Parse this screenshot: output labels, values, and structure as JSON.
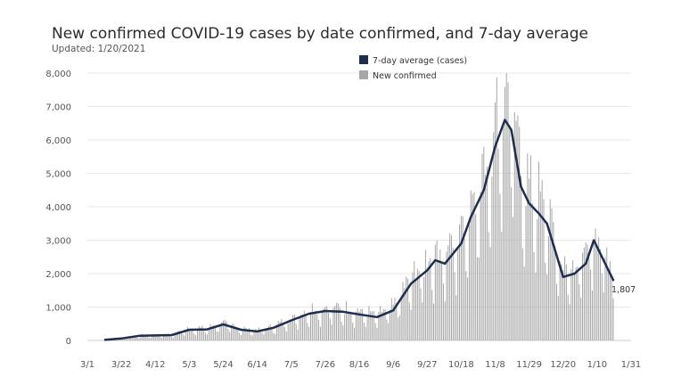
{
  "chart_data": {
    "type": "bar",
    "title": "New confirmed COVID-19 cases by date confirmed, and 7-day average",
    "subtitle": "Updated: 1/20/2021",
    "xlabel": "",
    "ylabel": "",
    "ylim": [
      0,
      8000
    ],
    "y_ticks": [
      "0",
      "1,000",
      "2,000",
      "3,000",
      "4,000",
      "5,000",
      "6,000",
      "7,000",
      "8,000"
    ],
    "x_ticks": [
      {
        "label": "3/1",
        "date": "2020-03-01"
      },
      {
        "label": "3/22",
        "date": "2020-03-22"
      },
      {
        "label": "4/12",
        "date": "2020-04-12"
      },
      {
        "label": "5/3",
        "date": "2020-05-03"
      },
      {
        "label": "5/24",
        "date": "2020-05-24"
      },
      {
        "label": "6/14",
        "date": "2020-06-14"
      },
      {
        "label": "7/5",
        "date": "2020-07-05"
      },
      {
        "label": "7/26",
        "date": "2020-07-26"
      },
      {
        "label": "8/16",
        "date": "2020-08-16"
      },
      {
        "label": "9/6",
        "date": "2020-09-06"
      },
      {
        "label": "9/27",
        "date": "2020-09-27"
      },
      {
        "label": "10/18",
        "date": "2020-10-18"
      },
      {
        "label": "11/8",
        "date": "2020-11-08"
      },
      {
        "label": "11/29",
        "date": "2020-11-29"
      },
      {
        "label": "12/20",
        "date": "2020-12-20"
      },
      {
        "label": "1/10",
        "date": "2021-01-10"
      },
      {
        "label": "1/31",
        "date": "2021-01-31"
      }
    ],
    "x_range": [
      "2020-03-01",
      "2021-01-31"
    ],
    "grid": true,
    "legend": "top-center",
    "series": [
      {
        "name": "7-day average (cases)",
        "color": "#1f2d4e",
        "type": "line",
        "points": [
          [
            "2020-03-12",
            20
          ],
          [
            "2020-03-22",
            60
          ],
          [
            "2020-04-02",
            140
          ],
          [
            "2020-04-12",
            150
          ],
          [
            "2020-04-22",
            160
          ],
          [
            "2020-05-03",
            320
          ],
          [
            "2020-05-14",
            330
          ],
          [
            "2020-05-24",
            480
          ],
          [
            "2020-06-04",
            320
          ],
          [
            "2020-06-14",
            270
          ],
          [
            "2020-06-24",
            380
          ],
          [
            "2020-07-05",
            600
          ],
          [
            "2020-07-16",
            800
          ],
          [
            "2020-07-26",
            880
          ],
          [
            "2020-08-06",
            860
          ],
          [
            "2020-08-16",
            780
          ],
          [
            "2020-08-27",
            700
          ],
          [
            "2020-09-06",
            900
          ],
          [
            "2020-09-17",
            1700
          ],
          [
            "2020-09-27",
            2100
          ],
          [
            "2020-10-02",
            2400
          ],
          [
            "2020-10-08",
            2300
          ],
          [
            "2020-10-18",
            2900
          ],
          [
            "2020-10-24",
            3700
          ],
          [
            "2020-11-01",
            4500
          ],
          [
            "2020-11-08",
            5800
          ],
          [
            "2020-11-14",
            6600
          ],
          [
            "2020-11-18",
            6300
          ],
          [
            "2020-11-24",
            4600
          ],
          [
            "2020-11-29",
            4100
          ],
          [
            "2020-12-05",
            3800
          ],
          [
            "2020-12-10",
            3500
          ],
          [
            "2020-12-15",
            2700
          ],
          [
            "2020-12-20",
            1900
          ],
          [
            "2020-12-27",
            2000
          ],
          [
            "2021-01-03",
            2300
          ],
          [
            "2021-01-08",
            3000
          ],
          [
            "2021-01-13",
            2500
          ],
          [
            "2021-01-17",
            2100
          ],
          [
            "2021-01-20",
            1807
          ]
        ]
      },
      {
        "name": "New confirmed",
        "color": "#a6a6a6",
        "type": "bar",
        "start": "2020-03-12",
        "end": "2021-01-20",
        "peak_value": 8000,
        "peak_date": "2020-11-15"
      }
    ],
    "annotations": [
      {
        "text": "1,807",
        "date": "2021-01-20",
        "value": 1807
      }
    ]
  }
}
